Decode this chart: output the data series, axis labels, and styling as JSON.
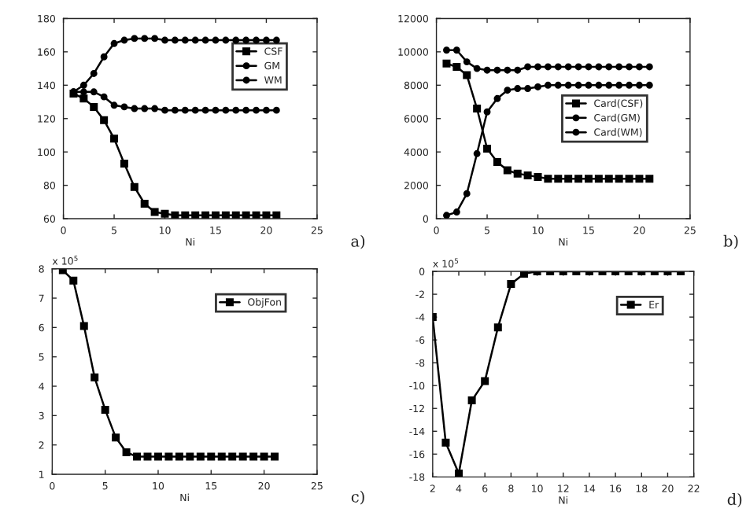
{
  "chart_data": [
    {
      "type": "line",
      "xlabel": "Ni",
      "x": [
        1,
        2,
        3,
        4,
        5,
        6,
        7,
        8,
        9,
        10,
        11,
        12,
        13,
        14,
        15,
        16,
        17,
        18,
        19,
        20,
        21
      ],
      "xlim": [
        0,
        25
      ],
      "xticks": [
        0,
        5,
        10,
        15,
        20,
        25
      ],
      "ylim": [
        60,
        180
      ],
      "yticks": [
        60,
        80,
        100,
        120,
        140,
        160,
        180
      ],
      "legend": "top right",
      "grid": false,
      "line_style": "solid",
      "annotations": [
        "a)"
      ],
      "series": [
        {
          "name": "CSF",
          "color": "#000000",
          "marker": "square",
          "values": [
            135,
            132,
            127,
            119,
            108,
            93,
            79,
            69,
            64,
            63,
            62,
            62,
            62,
            62,
            62,
            62,
            62,
            62,
            62,
            62,
            62
          ]
        },
        {
          "name": "GM",
          "color": "#000000",
          "marker": "circle",
          "values": [
            136,
            136,
            136,
            133,
            128,
            127,
            126,
            126,
            126,
            125,
            125,
            125,
            125,
            125,
            125,
            125,
            125,
            125,
            125,
            125,
            125
          ]
        },
        {
          "name": "WM",
          "color": "#000000",
          "marker": "circle",
          "values": [
            136,
            140,
            147,
            157,
            165,
            167,
            168,
            168,
            168,
            167,
            167,
            167,
            167,
            167,
            167,
            167,
            167,
            167,
            167,
            167,
            167
          ]
        }
      ]
    },
    {
      "type": "line",
      "xlabel": "Ni",
      "x": [
        1,
        2,
        3,
        4,
        5,
        6,
        7,
        8,
        9,
        10,
        11,
        12,
        13,
        14,
        15,
        16,
        17,
        18,
        19,
        20,
        21
      ],
      "xlim": [
        0,
        25
      ],
      "xticks": [
        0,
        5,
        10,
        15,
        20,
        25
      ],
      "ylim": [
        0,
        12000
      ],
      "yticks": [
        0,
        2000,
        4000,
        6000,
        8000,
        10000,
        12000
      ],
      "legend": "right",
      "grid": false,
      "line_style": "solid",
      "annotations": [
        "b)"
      ],
      "series": [
        {
          "name": "Card(CSF)",
          "color": "#000000",
          "marker": "square",
          "values": [
            9300,
            9100,
            8600,
            6600,
            4200,
            3400,
            2900,
            2700,
            2600,
            2500,
            2400,
            2400,
            2400,
            2400,
            2400,
            2400,
            2400,
            2400,
            2400,
            2400,
            2400
          ]
        },
        {
          "name": "Card(GM)",
          "color": "#000000",
          "marker": "circle",
          "values": [
            200,
            400,
            1500,
            3900,
            6400,
            7200,
            7700,
            7800,
            7800,
            7900,
            8000,
            8000,
            8000,
            8000,
            8000,
            8000,
            8000,
            8000,
            8000,
            8000,
            8000
          ]
        },
        {
          "name": "Card(WM)",
          "color": "#000000",
          "marker": "circle",
          "values": [
            10100,
            10100,
            9400,
            9000,
            8900,
            8900,
            8900,
            8900,
            9100,
            9100,
            9100,
            9100,
            9100,
            9100,
            9100,
            9100,
            9100,
            9100,
            9100,
            9100,
            9100
          ]
        }
      ]
    },
    {
      "type": "line",
      "xlabel": "Ni",
      "x": [
        1,
        2,
        3,
        4,
        5,
        6,
        7,
        8,
        9,
        10,
        11,
        12,
        13,
        14,
        15,
        16,
        17,
        18,
        19,
        20,
        21
      ],
      "xlim": [
        0,
        25
      ],
      "xticks": [
        0,
        5,
        10,
        15,
        20,
        25
      ],
      "ylim": [
        1,
        8
      ],
      "yticks": [
        1,
        2,
        3,
        4,
        5,
        6,
        7,
        8
      ],
      "legend": "top right",
      "grid": false,
      "line_style": "solid",
      "annotations": [
        "x 10$^{5}$",
        "c)"
      ],
      "series": [
        {
          "name": "ObjFon",
          "color": "#000000",
          "marker": "square",
          "values": [
            7.95,
            7.6,
            6.05,
            4.3,
            3.2,
            2.25,
            1.75,
            1.6,
            1.6,
            1.6,
            1.6,
            1.6,
            1.6,
            1.6,
            1.6,
            1.6,
            1.6,
            1.6,
            1.6,
            1.6,
            1.6
          ]
        }
      ]
    },
    {
      "type": "line",
      "xlabel": "Ni",
      "x": [
        2,
        3,
        4,
        5,
        6,
        7,
        8,
        9,
        10,
        11,
        12,
        13,
        14,
        15,
        16,
        17,
        18,
        19,
        20,
        21
      ],
      "xlim": [
        2,
        22
      ],
      "xticks": [
        2,
        4,
        6,
        8,
        10,
        12,
        14,
        16,
        18,
        20,
        22
      ],
      "ylim": [
        -18,
        0
      ],
      "yticks": [
        -18,
        -16,
        -14,
        -12,
        -10,
        -8,
        -6,
        -4,
        -2,
        0
      ],
      "legend": "top right",
      "grid": false,
      "line_style": "solid",
      "annotations": [
        "x 10$^{5}$",
        "d)"
      ],
      "series": [
        {
          "name": "Er",
          "color": "#000000",
          "marker": "square",
          "values": [
            -4,
            -15,
            -17.7,
            -11.3,
            -9.6,
            -4.9,
            -1.1,
            -0.2,
            0,
            0,
            0,
            0,
            0,
            0,
            0,
            0,
            0,
            0,
            0,
            0
          ]
        }
      ]
    }
  ]
}
